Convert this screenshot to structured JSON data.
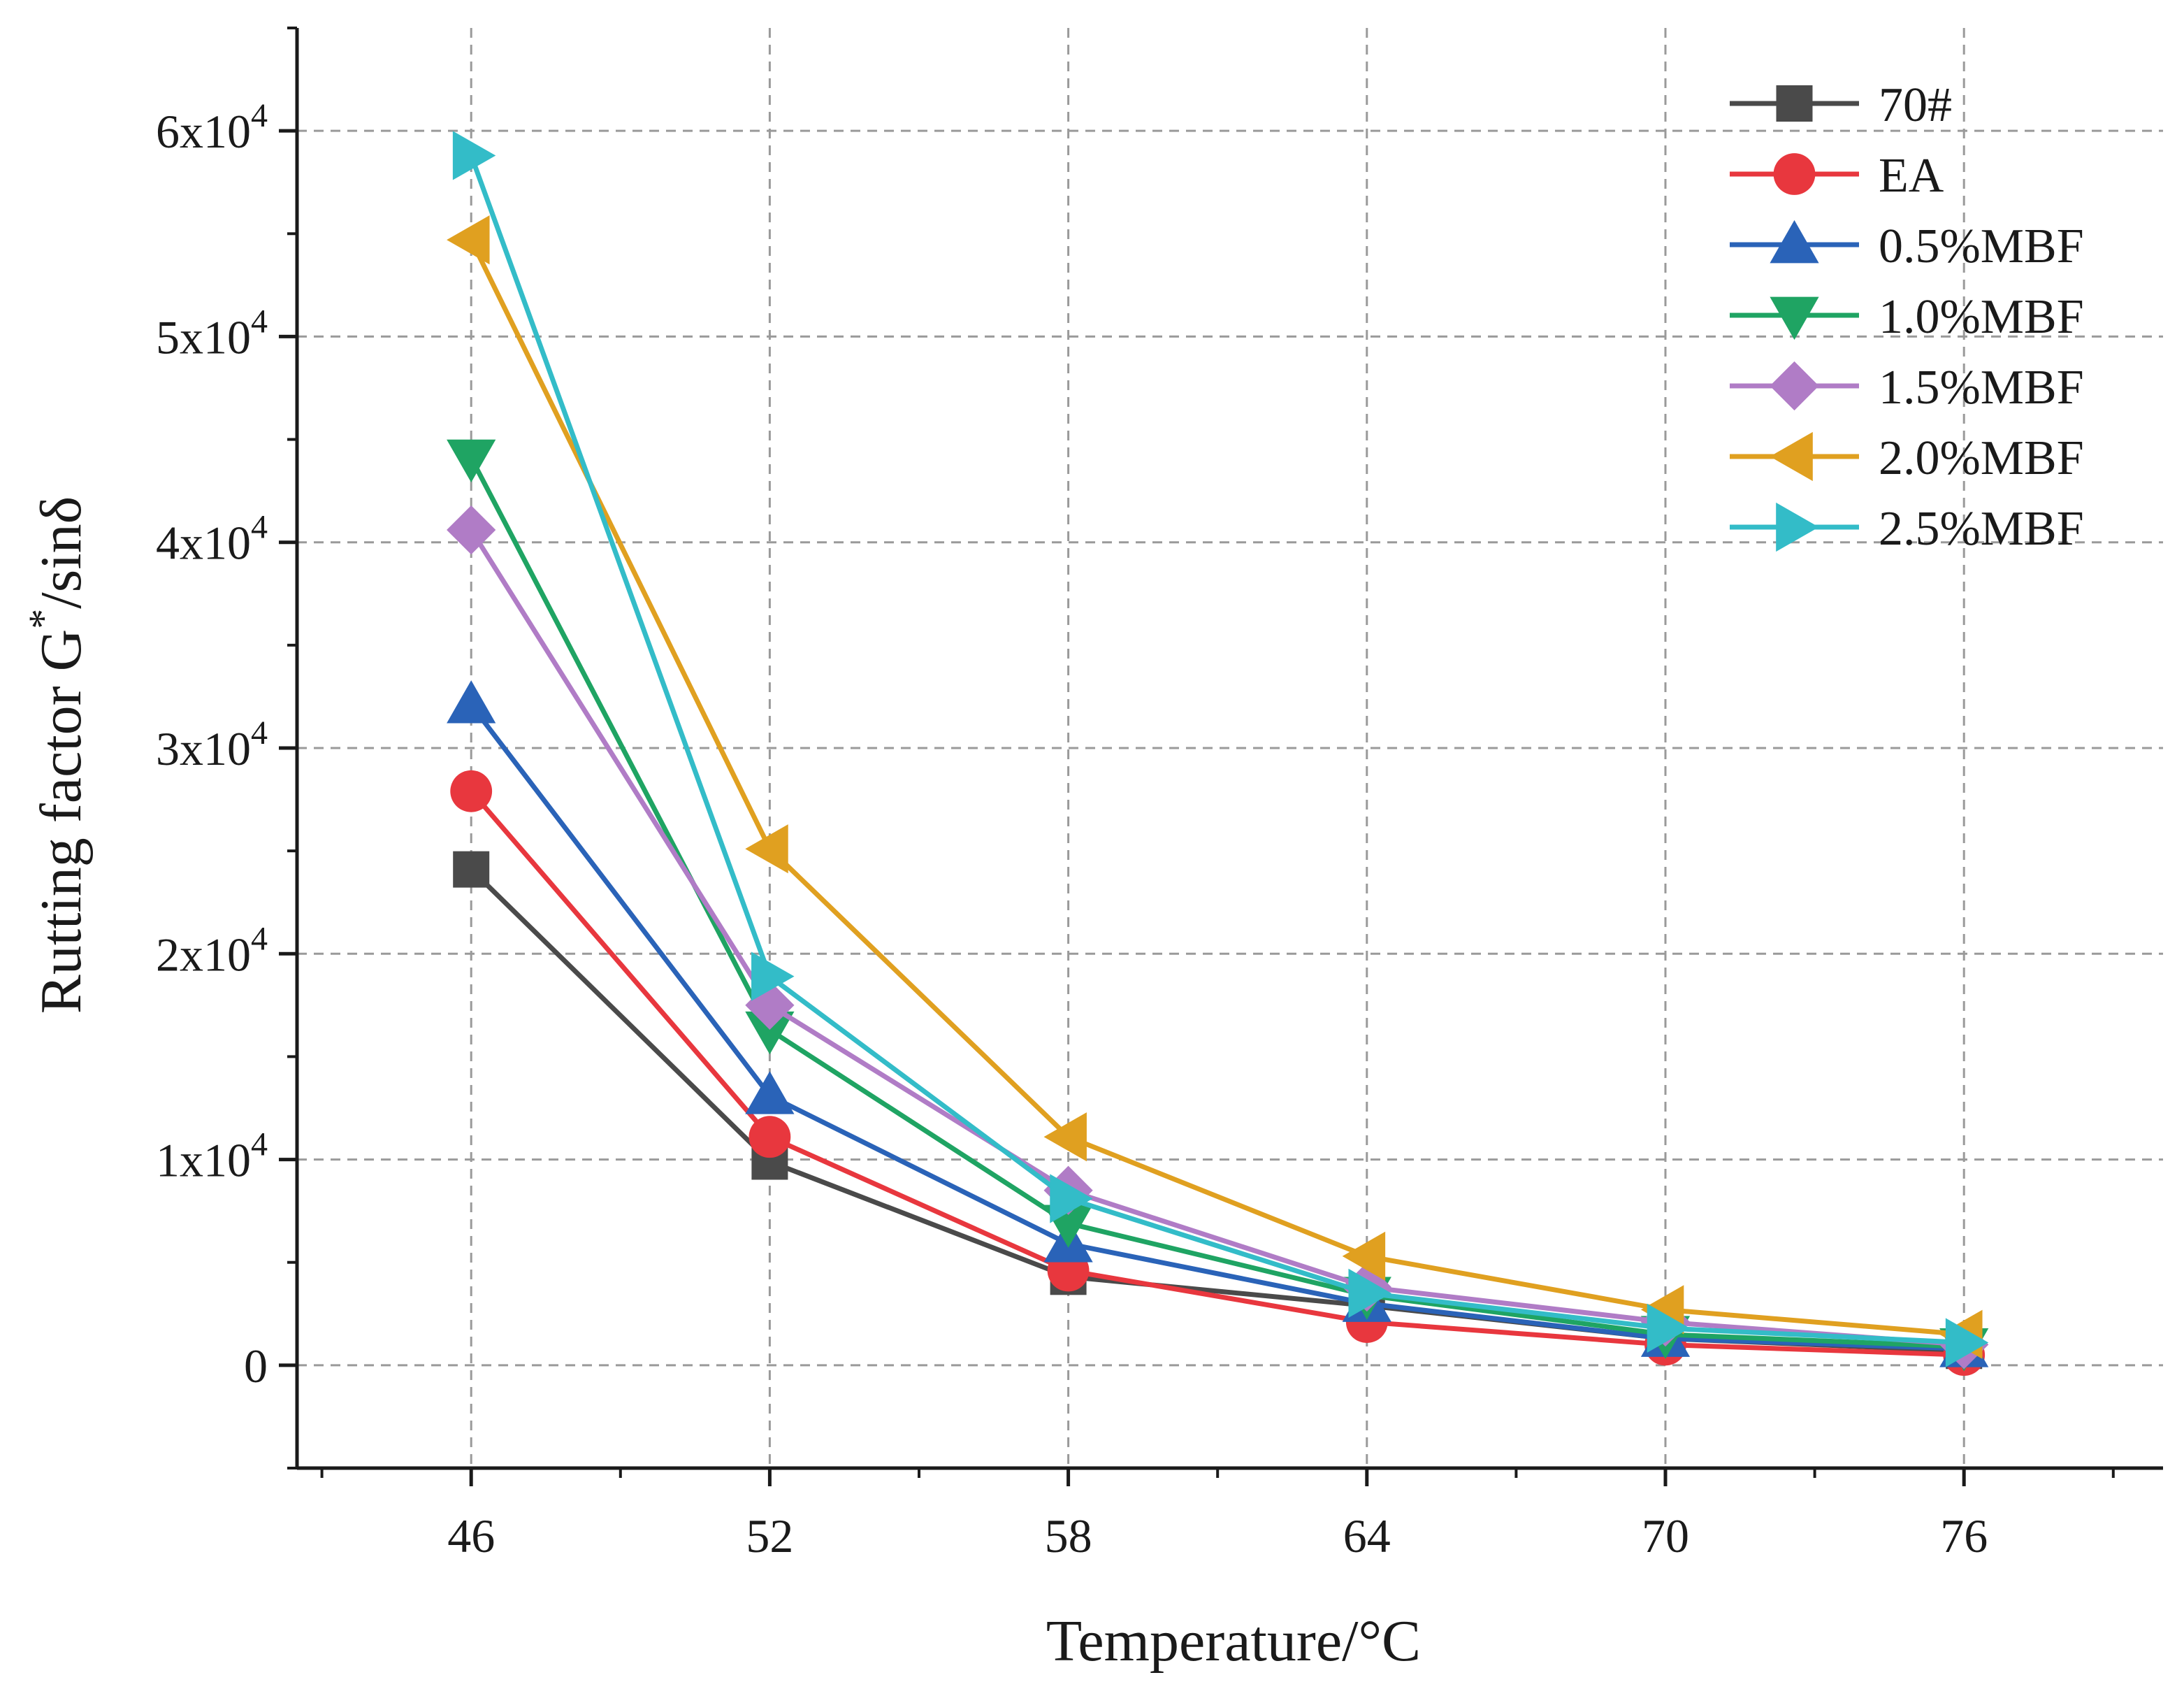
{
  "chart_data": {
    "type": "line",
    "title": "",
    "xlabel": "Temperature/°C",
    "ylabel": "Rutting factor G*/sinδ",
    "ylabel_parts": {
      "main": "Rutting factor G",
      "sup": "*",
      "tail": "/sinδ"
    },
    "x": [
      46,
      52,
      58,
      64,
      70,
      76
    ],
    "x_tick_labels": [
      "46",
      "52",
      "58",
      "64",
      "70",
      "76"
    ],
    "xlim": [
      42.5,
      80
    ],
    "ylim": [
      -5000,
      65000
    ],
    "y_ticks": [
      {
        "value": 0,
        "base": "0",
        "exp": ""
      },
      {
        "value": 10000,
        "base": "1x10",
        "exp": "4"
      },
      {
        "value": 20000,
        "base": "2x10",
        "exp": "4"
      },
      {
        "value": 30000,
        "base": "3x10",
        "exp": "4"
      },
      {
        "value": 40000,
        "base": "4x10",
        "exp": "4"
      },
      {
        "value": 50000,
        "base": "5x10",
        "exp": "4"
      },
      {
        "value": 60000,
        "base": "6x10",
        "exp": "4"
      }
    ],
    "grid": true,
    "legend_position": "top-right",
    "series": [
      {
        "name": "70#",
        "color": "#4a4a4a",
        "marker": "square",
        "values": [
          24100,
          9900,
          4300,
          2900,
          1300,
          700
        ]
      },
      {
        "name": "EA",
        "color": "#e8373e",
        "marker": "circle",
        "values": [
          27900,
          11100,
          4600,
          2100,
          1000,
          500
        ]
      },
      {
        "name": "0.5%MBF",
        "color": "#2a63b8",
        "marker": "triangle-up",
        "values": [
          32100,
          13100,
          5900,
          3000,
          1300,
          800
        ]
      },
      {
        "name": "1.0%MBF",
        "color": "#1fa463",
        "marker": "triangle-down",
        "values": [
          44100,
          16300,
          6900,
          3400,
          1500,
          900
        ]
      },
      {
        "name": "1.5%MBF",
        "color": "#b07cc6",
        "marker": "diamond",
        "values": [
          40600,
          17500,
          8500,
          3800,
          2100,
          1000
        ]
      },
      {
        "name": "2.0%MBF",
        "color": "#e0a020",
        "marker": "triangle-left",
        "values": [
          54700,
          25100,
          11100,
          5300,
          2700,
          1500
        ]
      },
      {
        "name": "2.5%MBF",
        "color": "#33bcc8",
        "marker": "triangle-right",
        "values": [
          58800,
          18900,
          8100,
          3500,
          1800,
          1100
        ]
      }
    ]
  }
}
